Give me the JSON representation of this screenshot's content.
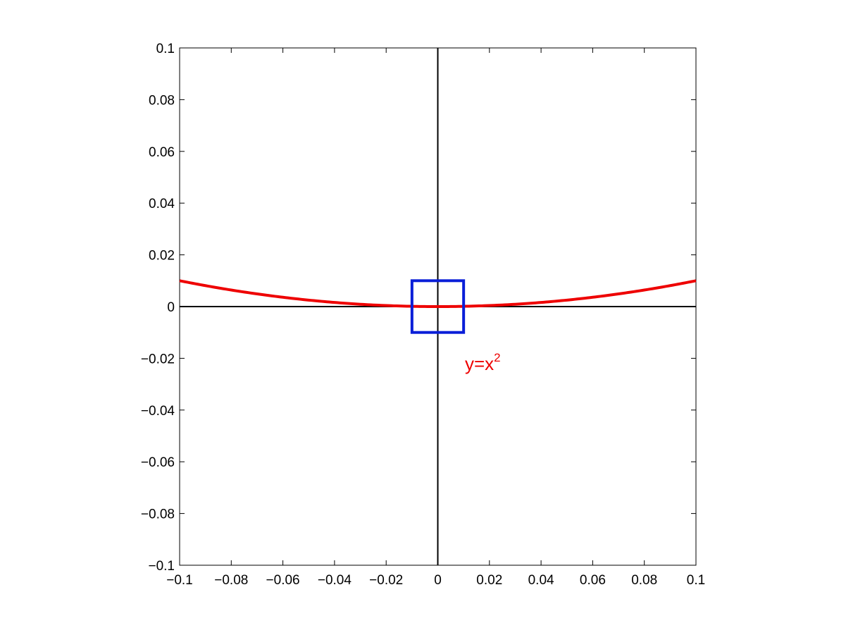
{
  "chart_data": {
    "type": "line",
    "xlim": [
      -0.1,
      0.1
    ],
    "ylim": [
      -0.1,
      0.1
    ],
    "xticks": [
      -0.1,
      -0.08,
      -0.06,
      -0.04,
      -0.02,
      0,
      0.02,
      0.04,
      0.06,
      0.08,
      0.1
    ],
    "yticks": [
      -0.1,
      -0.08,
      -0.06,
      -0.04,
      -0.02,
      0,
      0.02,
      0.04,
      0.06,
      0.08,
      0.1
    ],
    "xtick_labels": [
      "−0.1",
      "−0.08",
      "−0.06",
      "−0.04",
      "−0.02",
      "0",
      "0.02",
      "0.04",
      "0.06",
      "0.08",
      "0.1"
    ],
    "ytick_labels": [
      "−0.1",
      "−0.08",
      "−0.06",
      "−0.04",
      "−0.02",
      "0",
      "0.02",
      "0.04",
      "0.06",
      "0.08",
      "0.1"
    ],
    "grid": false,
    "axis_lines": {
      "x": 0,
      "y": 0,
      "color": "#000000"
    },
    "series": [
      {
        "function": "y=x^2",
        "x_range": [
          -0.1,
          0.1
        ],
        "color": "#ee0000"
      }
    ],
    "box": {
      "x": [
        -0.01,
        0.01
      ],
      "y": [
        -0.01,
        0.01
      ],
      "color": "#0a1ed8"
    },
    "annotation": {
      "text": "y=x",
      "superscript": "2",
      "x": 0.0105,
      "y": -0.0245,
      "color": "#ee0000"
    }
  }
}
